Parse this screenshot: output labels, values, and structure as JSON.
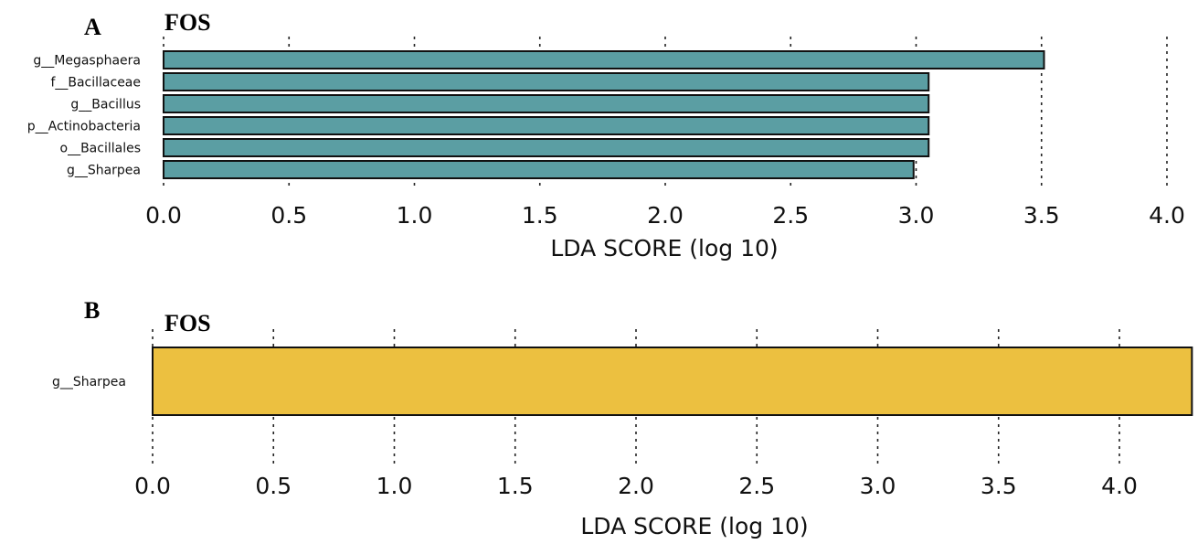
{
  "chart_data": [
    {
      "type": "bar",
      "orientation": "horizontal",
      "panel": "A",
      "title": "FOS",
      "xlabel": "LDA SCORE (log 10)",
      "ylabel": "",
      "xlim": [
        0.0,
        4.0
      ],
      "xticks": [
        "0.0",
        "0.5",
        "1.0",
        "1.5",
        "2.0",
        "2.5",
        "3.0",
        "3.5",
        "4.0"
      ],
      "categories": [
        "g__Megasphaera",
        "f__Bacillaceae",
        "g__Bacillus",
        "p__Actinobacteria",
        "o__Bacillales",
        "g__Sharpea"
      ],
      "values": [
        3.51,
        3.05,
        3.05,
        3.05,
        3.05,
        2.99
      ],
      "bar_color": "#5b9ea3",
      "grid": true
    },
    {
      "type": "bar",
      "orientation": "horizontal",
      "panel": "B",
      "title": "FOS",
      "xlabel": "LDA SCORE (log 10)",
      "ylabel": "",
      "xlim": [
        0.0,
        4.3
      ],
      "xticks": [
        "0.0",
        "0.5",
        "1.0",
        "1.5",
        "2.0",
        "2.5",
        "3.0",
        "3.5",
        "4.0"
      ],
      "categories": [
        "g__Sharpea"
      ],
      "values": [
        4.3
      ],
      "bar_color": "#ecc040",
      "grid": true
    }
  ]
}
